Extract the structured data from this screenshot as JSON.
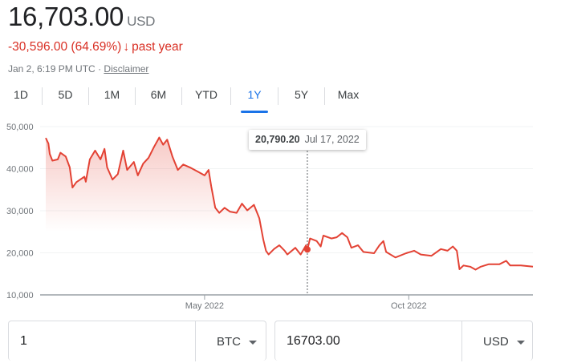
{
  "header": {
    "price": "16,703.00",
    "currency": "USD",
    "change": "-30,596.00 (64.69%)",
    "change_arrow": "↓",
    "change_period": "past year",
    "timestamp": "Jan 2, 6:19 PM UTC",
    "separator": "·",
    "disclaimer": "Disclaimer"
  },
  "colors": {
    "negative": "#d93025",
    "accent": "#1a73e8",
    "line": "#e34234"
  },
  "tabs": [
    {
      "label": "1D"
    },
    {
      "label": "5D"
    },
    {
      "label": "1M"
    },
    {
      "label": "6M"
    },
    {
      "label": "YTD"
    },
    {
      "label": "1Y",
      "active": true
    },
    {
      "label": "5Y"
    },
    {
      "label": "Max"
    }
  ],
  "tooltip": {
    "value": "20,790.20",
    "date": "Jul 17, 2022"
  },
  "chart_data": {
    "type": "area",
    "ylim": [
      10000,
      50000
    ],
    "yticks": [
      "50,000",
      "40,000",
      "30,000",
      "20,000",
      "10,000"
    ],
    "ytick_values": [
      50000,
      40000,
      30000,
      20000,
      10000
    ],
    "xticks": [
      {
        "label": "May 2022",
        "date": "2022-05-01"
      },
      {
        "label": "Oct 2022",
        "date": "2022-10-01"
      }
    ],
    "xlim": [
      "2022-01-02",
      "2023-01-02"
    ],
    "grid": true,
    "highlight": {
      "date": "2022-07-17",
      "value": 20790.2
    },
    "points": [
      [
        "2022-01-02",
        47300
      ],
      [
        "2022-01-04",
        46000
      ],
      [
        "2022-01-05",
        43500
      ],
      [
        "2022-01-07",
        41900
      ],
      [
        "2022-01-11",
        42200
      ],
      [
        "2022-01-13",
        43800
      ],
      [
        "2022-01-17",
        42900
      ],
      [
        "2022-01-20",
        40300
      ],
      [
        "2022-01-22",
        35500
      ],
      [
        "2022-01-25",
        36800
      ],
      [
        "2022-01-31",
        38100
      ],
      [
        "2022-02-01",
        36900
      ],
      [
        "2022-02-04",
        42200
      ],
      [
        "2022-02-08",
        44300
      ],
      [
        "2022-02-12",
        42200
      ],
      [
        "2022-02-15",
        44700
      ],
      [
        "2022-02-17",
        40300
      ],
      [
        "2022-02-21",
        37400
      ],
      [
        "2022-02-25",
        38700
      ],
      [
        "2022-03-01",
        44300
      ],
      [
        "2022-03-04",
        39700
      ],
      [
        "2022-03-09",
        41600
      ],
      [
        "2022-03-12",
        38400
      ],
      [
        "2022-03-16",
        41200
      ],
      [
        "2022-03-20",
        42600
      ],
      [
        "2022-03-24",
        45100
      ],
      [
        "2022-03-28",
        47400
      ],
      [
        "2022-03-31",
        45700
      ],
      [
        "2022-04-03",
        46900
      ],
      [
        "2022-04-07",
        42800
      ],
      [
        "2022-04-11",
        39700
      ],
      [
        "2022-04-15",
        41000
      ],
      [
        "2022-04-20",
        40300
      ],
      [
        "2022-04-26",
        39300
      ],
      [
        "2022-05-01",
        38400
      ],
      [
        "2022-05-04",
        39700
      ],
      [
        "2022-05-06",
        35800
      ],
      [
        "2022-05-09",
        30700
      ],
      [
        "2022-05-12",
        29500
      ],
      [
        "2022-05-16",
        30700
      ],
      [
        "2022-05-20",
        29800
      ],
      [
        "2022-05-25",
        29500
      ],
      [
        "2022-05-29",
        31700
      ],
      [
        "2022-06-02",
        30100
      ],
      [
        "2022-06-07",
        31400
      ],
      [
        "2022-06-11",
        28200
      ],
      [
        "2022-06-14",
        23100
      ],
      [
        "2022-06-16",
        20500
      ],
      [
        "2022-06-18",
        19600
      ],
      [
        "2022-06-22",
        20900
      ],
      [
        "2022-06-26",
        21800
      ],
      [
        "2022-06-30",
        20500
      ],
      [
        "2022-07-02",
        19600
      ],
      [
        "2022-07-08",
        21200
      ],
      [
        "2022-07-12",
        19600
      ],
      [
        "2022-07-16",
        21800
      ],
      [
        "2022-07-17",
        20790.2
      ],
      [
        "2022-07-19",
        23400
      ],
      [
        "2022-07-24",
        22800
      ],
      [
        "2022-07-27",
        21500
      ],
      [
        "2022-07-29",
        24100
      ],
      [
        "2022-08-04",
        23400
      ],
      [
        "2022-08-08",
        23700
      ],
      [
        "2022-08-12",
        24700
      ],
      [
        "2022-08-16",
        23700
      ],
      [
        "2022-08-19",
        21200
      ],
      [
        "2022-08-24",
        21800
      ],
      [
        "2022-08-28",
        20200
      ],
      [
        "2022-09-05",
        19900
      ],
      [
        "2022-09-09",
        21800
      ],
      [
        "2022-09-12",
        22800
      ],
      [
        "2022-09-14",
        20200
      ],
      [
        "2022-09-21",
        18900
      ],
      [
        "2022-09-29",
        19900
      ],
      [
        "2022-10-05",
        20500
      ],
      [
        "2022-10-10",
        19600
      ],
      [
        "2022-10-18",
        19300
      ],
      [
        "2022-10-25",
        20900
      ],
      [
        "2022-10-30",
        20500
      ],
      [
        "2022-11-03",
        21500
      ],
      [
        "2022-11-06",
        20500
      ],
      [
        "2022-11-08",
        16100
      ],
      [
        "2022-11-11",
        17000
      ],
      [
        "2022-11-16",
        16700
      ],
      [
        "2022-11-20",
        16000
      ],
      [
        "2022-11-24",
        16700
      ],
      [
        "2022-11-30",
        17300
      ],
      [
        "2022-12-08",
        17300
      ],
      [
        "2022-12-13",
        18100
      ],
      [
        "2022-12-16",
        17000
      ],
      [
        "2022-12-24",
        17000
      ],
      [
        "2023-01-02",
        16703
      ]
    ]
  },
  "converter": {
    "from_amount": "1",
    "from_currency": "BTC",
    "to_amount": "16703.00",
    "to_currency": "USD"
  }
}
